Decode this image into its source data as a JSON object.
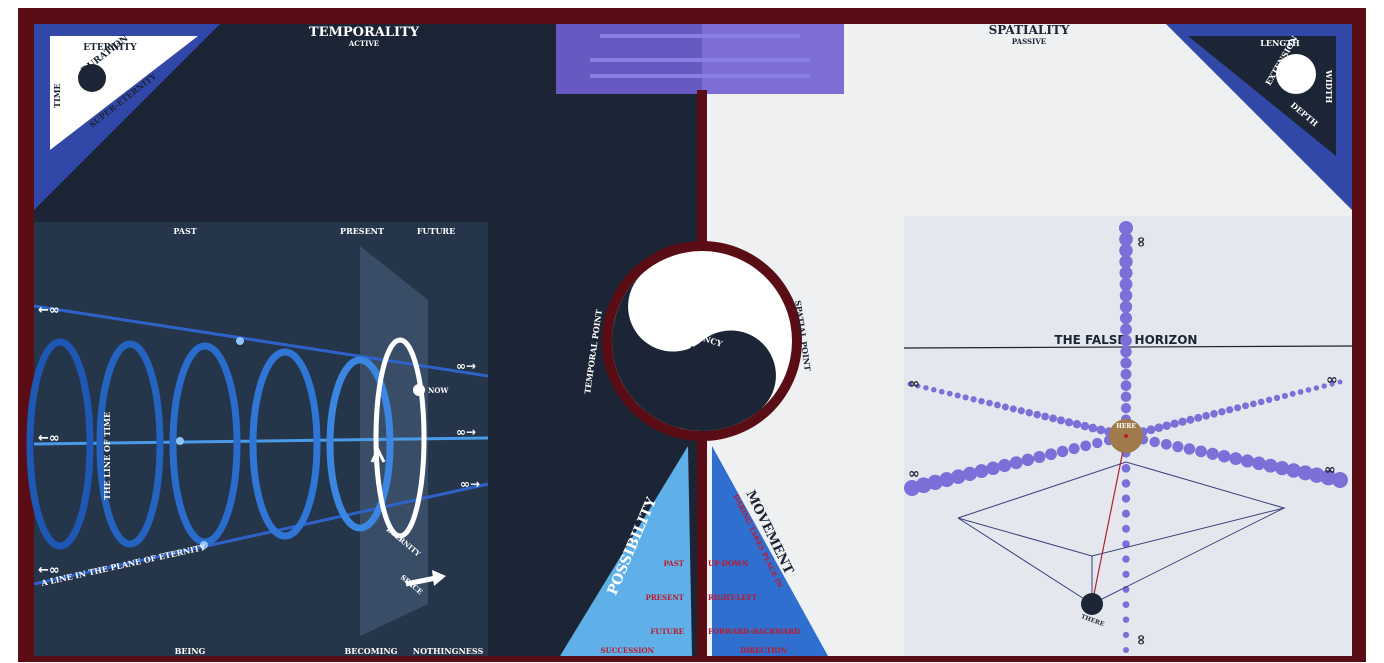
{
  "colors": {
    "frame": "#5a0d14",
    "night": "#1c2535",
    "panel": "#2a3a4e",
    "light": "#eef0f2",
    "blue": "#2f6fcf",
    "lightblue": "#5fb0e8",
    "violet": "#7b6fd8",
    "red": "#c0182a",
    "bronze": "#a07a4a"
  },
  "left": {
    "title": "TEMPORALITY",
    "subtitle": "ACTIVE",
    "corner": {
      "top": "ETERNITY",
      "diag1": "DURATION",
      "diag2": "SUPER-ETERNITY",
      "side": "TIME"
    },
    "timeline": {
      "past": "PAST",
      "present": "PRESENT",
      "future": "FUTURE",
      "being": "BEING",
      "becoming": "BECOMING",
      "nothingness": "NOTHINGNESS",
      "line_of_time": "THE LINE OF TIME",
      "plane": "A LINE IN THE PLANE OF ETERNITY",
      "now": "NOW",
      "eternity": "ETERNITY",
      "space": "SPACE",
      "inf_left_top": "←∞",
      "inf_left_mid": "←∞",
      "inf_left_bottom": "←∞",
      "inf_right_top": "∞→",
      "inf_right_mid": "∞→",
      "inf_right_bottom": "∞→"
    }
  },
  "right": {
    "title": "SPATIALITY",
    "subtitle": "PASSIVE",
    "corner": {
      "top": "LENGTH",
      "diag1": "EXTENSION",
      "diag2": "DEPTH",
      "side": "WIDTH"
    },
    "false_horizon_1": "THE FALSE",
    "false_horizon_2": "HORIZON",
    "here": "HERE",
    "there": "THERE",
    "inf": "∞"
  },
  "center": {
    "potency": "POTENCY",
    "act": "ACT",
    "temporal_point": "TEMPORAL POINT",
    "spatial_point": "SPATIAL POINT",
    "possibility": "POSSIBILITY",
    "movement": "MOVEMENT",
    "daring": "DARING TAKES PLACE IN",
    "rows": [
      {
        "left": "PAST",
        "right": "UP-DOWN"
      },
      {
        "left": "PRESENT",
        "right": "RIGHT-LEFT"
      },
      {
        "left": "FUTURE",
        "right": "FORWARD-BACKWARD"
      },
      {
        "left": "SUCCESSION",
        "right": "DIRECTION"
      }
    ]
  }
}
